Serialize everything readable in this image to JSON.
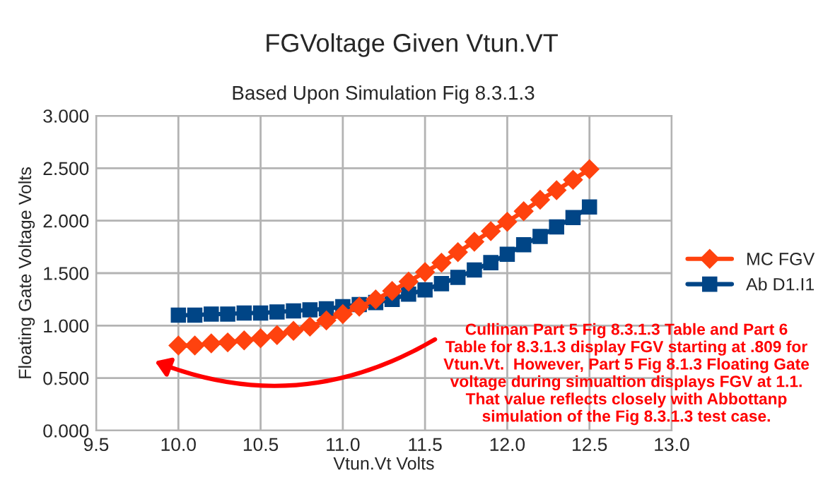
{
  "chart_data": {
    "type": "line",
    "title": "FGVoltage Given Vtun.VT",
    "subtitle": "Based Upon Simulation Fig 8.3.1.3",
    "xlabel": "Vtun.Vt Volts",
    "ylabel": "Floating Gate Voltage Volts",
    "x": [
      10.0,
      10.1,
      10.2,
      10.3,
      10.4,
      10.5,
      10.6,
      10.7,
      10.8,
      10.9,
      11.0,
      11.1,
      11.2,
      11.3,
      11.4,
      11.5,
      11.6,
      11.7,
      11.8,
      11.9,
      12.0,
      12.1,
      12.2,
      12.3,
      12.4,
      12.5
    ],
    "series": [
      {
        "name": "MC FGV",
        "color": "#ff420e",
        "marker": "diamond",
        "values": [
          0.81,
          0.81,
          0.83,
          0.84,
          0.86,
          0.88,
          0.91,
          0.95,
          0.99,
          1.05,
          1.11,
          1.18,
          1.25,
          1.33,
          1.42,
          1.51,
          1.6,
          1.7,
          1.8,
          1.9,
          1.99,
          2.09,
          2.2,
          2.29,
          2.39,
          2.49
        ]
      },
      {
        "name": "Ab D1.I1",
        "color": "#004586",
        "marker": "square",
        "values": [
          1.1,
          1.1,
          1.11,
          1.11,
          1.12,
          1.12,
          1.13,
          1.14,
          1.15,
          1.16,
          1.18,
          1.2,
          1.22,
          1.25,
          1.3,
          1.34,
          1.4,
          1.46,
          1.53,
          1.6,
          1.68,
          1.77,
          1.85,
          1.94,
          2.03,
          2.13
        ]
      }
    ],
    "xlim": [
      9.5,
      13.0
    ],
    "xticks": [
      {
        "value": 9.5,
        "label": "9.5"
      },
      {
        "value": 10.0,
        "label": "10.0"
      },
      {
        "value": 10.5,
        "label": "10.5"
      },
      {
        "value": 11.0,
        "label": "11.0"
      },
      {
        "value": 11.5,
        "label": "11.5"
      },
      {
        "value": 12.0,
        "label": "12.0"
      },
      {
        "value": 12.5,
        "label": "12.5"
      },
      {
        "value": 13.0,
        "label": "13.0"
      }
    ],
    "ylim": [
      0,
      3
    ],
    "yticks": [
      {
        "value": 0,
        "label": "0.000"
      },
      {
        "value": 0.5,
        "label": "0.500"
      },
      {
        "value": 1.0,
        "label": "1.000"
      },
      {
        "value": 1.5,
        "label": "1.500"
      },
      {
        "value": 2.0,
        "label": "2.000"
      },
      {
        "value": 2.5,
        "label": "2.500"
      },
      {
        "value": 3.0,
        "label": "3.000"
      }
    ],
    "grid": true,
    "legend": "right",
    "line_style": "solid",
    "annotations": [
      "Cullinan Part 5 Fig 8.3.1.3 Table and Part 6\nTable for 8.3.1.3 display FGV starting at .809 for\nVtun.Vt.  However, Part 5 Fig 8.1.3 Floating Gate\nvoltage during simualtion displays FGV at 1.1.\nThat value reflects closely with Abbottanp\nsimulation of the Fig 8.3.1.3 test case."
    ]
  }
}
